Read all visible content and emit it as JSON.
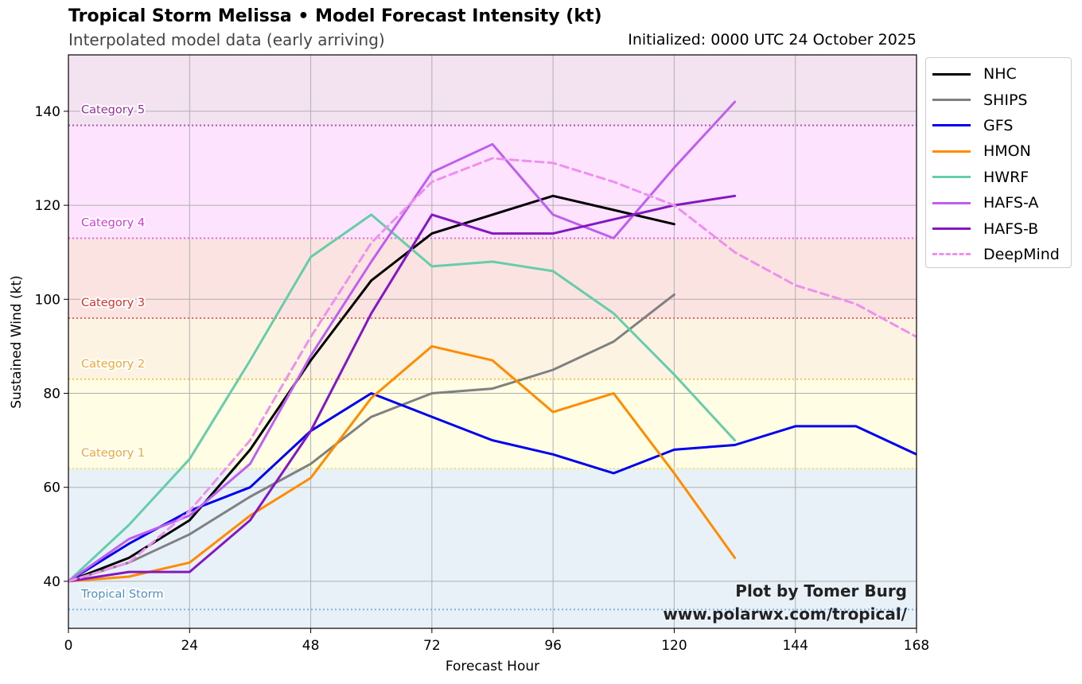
{
  "header": {
    "title": "Tropical Storm Melissa • Model Forecast Intensity (kt)",
    "subtitle": "Interpolated model data (early arriving)",
    "initialized": "Initialized: 0000 UTC 24 October 2025"
  },
  "credit": {
    "line1": "Plot by Tomer Burg",
    "line2": "www.polarwx.com/tropical/"
  },
  "chart_data": {
    "type": "line",
    "title": "Tropical Storm Melissa • Model Forecast Intensity (kt)",
    "xlabel": "Forecast Hour",
    "ylabel": "Sustained Wind (kt)",
    "xlim": [
      0,
      168
    ],
    "ylim": [
      30,
      152
    ],
    "xticks": [
      0,
      24,
      48,
      72,
      96,
      120,
      144,
      168
    ],
    "yticks": [
      40,
      60,
      80,
      100,
      120,
      140
    ],
    "grid": true,
    "legend_position": "outside-right",
    "categories": [
      {
        "name": "Tropical Storm",
        "threshold": 34,
        "band": [
          30,
          64
        ],
        "band_color": "#e9f1f8",
        "line_color": "#7fb3de",
        "label_color": "#4a90c2"
      },
      {
        "name": "Category 1",
        "threshold": 64,
        "band": [
          64,
          83
        ],
        "band_color": "#fffde3",
        "line_color": "#ede56a",
        "label_color": "#f0a830"
      },
      {
        "name": "Category 2",
        "threshold": 83,
        "band": [
          83,
          96
        ],
        "band_color": "#fdf3e3",
        "line_color": "#f4c44a",
        "label_color": "#f0a830"
      },
      {
        "name": "Category 3",
        "threshold": 96,
        "band": [
          96,
          113
        ],
        "band_color": "#fbe3e1",
        "line_color": "#e86a5e",
        "label_color": "#d9302a"
      },
      {
        "name": "Category 4",
        "threshold": 113,
        "band": [
          113,
          137
        ],
        "band_color": "#fde3fd",
        "line_color": "#e26ae2",
        "label_color": "#d637d6"
      },
      {
        "name": "Category 5",
        "threshold": 137,
        "band": [
          137,
          152
        ],
        "band_color": "#f3e3f1",
        "line_color": "#b153b5",
        "label_color": "#9b2aa0"
      }
    ],
    "series": [
      {
        "name": "NHC",
        "color": "#000000",
        "dash": false,
        "points": [
          [
            0,
            40
          ],
          [
            12,
            45
          ],
          [
            24,
            53
          ],
          [
            36,
            68
          ],
          [
            48,
            87
          ],
          [
            60,
            104
          ],
          [
            72,
            114
          ],
          [
            84,
            118
          ],
          [
            96,
            122
          ],
          [
            108,
            119
          ],
          [
            120,
            116
          ]
        ]
      },
      {
        "name": "SHIPS",
        "color": "#808080",
        "dash": false,
        "points": [
          [
            0,
            40
          ],
          [
            12,
            44
          ],
          [
            24,
            50
          ],
          [
            36,
            58
          ],
          [
            48,
            65
          ],
          [
            60,
            75
          ],
          [
            72,
            80
          ],
          [
            84,
            81
          ],
          [
            96,
            85
          ],
          [
            108,
            91
          ],
          [
            120,
            101
          ]
        ]
      },
      {
        "name": "GFS",
        "color": "#0000ee",
        "dash": false,
        "points": [
          [
            0,
            40
          ],
          [
            12,
            48
          ],
          [
            24,
            55
          ],
          [
            36,
            60
          ],
          [
            48,
            72
          ],
          [
            60,
            80
          ],
          [
            72,
            75
          ],
          [
            84,
            70
          ],
          [
            96,
            67
          ],
          [
            108,
            63
          ],
          [
            120,
            68
          ],
          [
            132,
            69
          ],
          [
            144,
            73
          ],
          [
            156,
            73
          ],
          [
            168,
            67
          ]
        ]
      },
      {
        "name": "HMON",
        "color": "#ff8c00",
        "dash": false,
        "points": [
          [
            0,
            40
          ],
          [
            12,
            41
          ],
          [
            24,
            44
          ],
          [
            36,
            54
          ],
          [
            48,
            62
          ],
          [
            60,
            79
          ],
          [
            72,
            90
          ],
          [
            84,
            87
          ],
          [
            96,
            76
          ],
          [
            108,
            80
          ],
          [
            120,
            63
          ],
          [
            132,
            45
          ]
        ]
      },
      {
        "name": "HWRF",
        "color": "#66cdaa",
        "dash": false,
        "points": [
          [
            0,
            40
          ],
          [
            12,
            52
          ],
          [
            24,
            66
          ],
          [
            36,
            87
          ],
          [
            48,
            109
          ],
          [
            60,
            118
          ],
          [
            72,
            107
          ],
          [
            84,
            108
          ],
          [
            96,
            106
          ],
          [
            108,
            97
          ],
          [
            120,
            84
          ],
          [
            132,
            70
          ]
        ]
      },
      {
        "name": "HAFS-A",
        "color": "#bf5fef",
        "dash": false,
        "points": [
          [
            0,
            40
          ],
          [
            12,
            49
          ],
          [
            24,
            54
          ],
          [
            36,
            65
          ],
          [
            48,
            88
          ],
          [
            60,
            108
          ],
          [
            72,
            127
          ],
          [
            84,
            133
          ],
          [
            96,
            118
          ],
          [
            108,
            113
          ],
          [
            120,
            128
          ],
          [
            132,
            142
          ]
        ]
      },
      {
        "name": "HAFS-B",
        "color": "#8317c0",
        "dash": false,
        "points": [
          [
            0,
            40
          ],
          [
            12,
            42
          ],
          [
            24,
            42
          ],
          [
            36,
            53
          ],
          [
            48,
            72
          ],
          [
            60,
            97
          ],
          [
            72,
            118
          ],
          [
            84,
            114
          ],
          [
            96,
            114
          ],
          [
            108,
            117
          ],
          [
            120,
            120
          ],
          [
            132,
            122
          ]
        ]
      },
      {
        "name": "DeepMind",
        "color": "#ee90ee",
        "dash": true,
        "points": [
          [
            0,
            40
          ],
          [
            12,
            44
          ],
          [
            24,
            55
          ],
          [
            36,
            70
          ],
          [
            48,
            92
          ],
          [
            60,
            112
          ],
          [
            72,
            125
          ],
          [
            84,
            130
          ],
          [
            96,
            129
          ],
          [
            108,
            125
          ],
          [
            120,
            120
          ],
          [
            132,
            110
          ],
          [
            144,
            103
          ],
          [
            156,
            99
          ],
          [
            168,
            92
          ]
        ]
      }
    ]
  }
}
